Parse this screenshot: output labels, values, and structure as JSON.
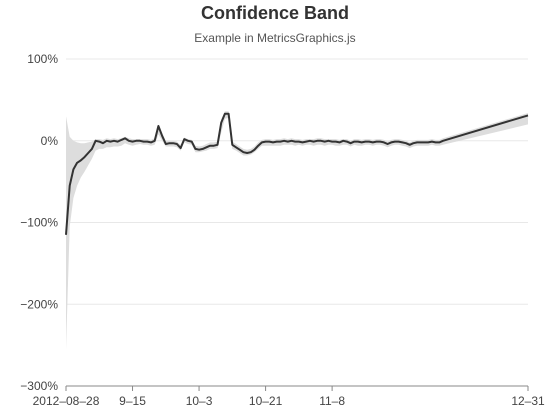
{
  "chart_data": {
    "type": "line",
    "title": "Confidence Band",
    "subtitle": "Example in MetricsGraphics.js",
    "y_format": "percent",
    "ylim": [
      -3.0,
      1.0
    ],
    "y_ticks": [
      1.0,
      0.0,
      -1.0,
      -2.0,
      -3.0
    ],
    "y_tick_labels": [
      "100%",
      "0%",
      "−100%",
      "−200%",
      "−300%"
    ],
    "xlim": [
      "2012-08-28",
      "2012-12-31"
    ],
    "x_ticks": [
      "2012-08-28",
      "2012-09-15",
      "2012-10-03",
      "2012-10-21",
      "2012-11-08",
      "2012-12-31"
    ],
    "x_tick_labels": [
      "2012–08–28",
      "9–15",
      "10–3",
      "10–21",
      "11–8",
      "12–31"
    ],
    "grid": true,
    "colors": {
      "line": "#333333",
      "band": "#dddddd",
      "grid": "#e8e8e8",
      "axis": "#888888"
    },
    "series": [
      {
        "values": [
          [
            "2012-08-28",
            -1.15,
            -2.55,
            0.3
          ],
          [
            "2012-08-29",
            -0.55,
            -1.05,
            0.05
          ],
          [
            "2012-08-30",
            -0.35,
            -0.7,
            0.0
          ],
          [
            "2012-08-31",
            -0.27,
            -0.55,
            -0.02
          ],
          [
            "2012-09-01",
            -0.24,
            -0.45,
            -0.03
          ],
          [
            "2012-09-02",
            -0.2,
            -0.38,
            -0.03
          ],
          [
            "2012-09-03",
            -0.15,
            -0.3,
            -0.02
          ],
          [
            "2012-09-04",
            -0.1,
            -0.22,
            -0.01
          ],
          [
            "2012-09-05",
            0.0,
            -0.12,
            0.02
          ],
          [
            "2012-09-06",
            -0.01,
            -0.1,
            0.02
          ],
          [
            "2012-09-07",
            -0.03,
            -0.1,
            0.01
          ],
          [
            "2012-09-08",
            0.0,
            -0.08,
            0.03
          ],
          [
            "2012-09-09",
            -0.01,
            -0.08,
            0.02
          ],
          [
            "2012-09-10",
            0.0,
            -0.07,
            0.03
          ],
          [
            "2012-09-11",
            -0.01,
            -0.07,
            0.02
          ],
          [
            "2012-09-12",
            0.01,
            -0.06,
            0.03
          ],
          [
            "2012-09-13",
            0.03,
            -0.03,
            0.05
          ],
          [
            "2012-09-14",
            0.0,
            -0.05,
            0.03
          ],
          [
            "2012-09-15",
            -0.01,
            -0.06,
            0.02
          ],
          [
            "2012-09-16",
            0.0,
            -0.05,
            0.02
          ],
          [
            "2012-09-17",
            0.0,
            -0.04,
            0.02
          ],
          [
            "2012-09-18",
            -0.01,
            -0.05,
            0.02
          ],
          [
            "2012-09-19",
            -0.01,
            -0.05,
            0.02
          ],
          [
            "2012-09-20",
            -0.02,
            -0.06,
            0.01
          ],
          [
            "2012-09-21",
            0.0,
            -0.05,
            0.03
          ],
          [
            "2012-09-22",
            0.18,
            0.08,
            0.2
          ],
          [
            "2012-09-23",
            0.06,
            0.0,
            0.1
          ],
          [
            "2012-09-24",
            -0.04,
            -0.07,
            0.0
          ],
          [
            "2012-09-25",
            -0.03,
            -0.07,
            0.0
          ],
          [
            "2012-09-26",
            -0.03,
            -0.07,
            0.0
          ],
          [
            "2012-09-27",
            -0.04,
            -0.08,
            -0.01
          ],
          [
            "2012-09-28",
            -0.09,
            -0.12,
            -0.05
          ],
          [
            "2012-09-29",
            0.02,
            -0.02,
            0.04
          ],
          [
            "2012-09-30",
            0.0,
            -0.04,
            0.02
          ],
          [
            "2012-10-01",
            -0.01,
            -0.05,
            0.01
          ],
          [
            "2012-10-02",
            -0.1,
            -0.14,
            -0.06
          ],
          [
            "2012-10-03",
            -0.11,
            -0.14,
            -0.07
          ],
          [
            "2012-10-04",
            -0.1,
            -0.13,
            -0.06
          ],
          [
            "2012-10-05",
            -0.08,
            -0.12,
            -0.04
          ],
          [
            "2012-10-06",
            -0.06,
            -0.1,
            -0.02
          ],
          [
            "2012-10-07",
            -0.06,
            -0.1,
            -0.02
          ],
          [
            "2012-10-08",
            -0.05,
            -0.09,
            -0.01
          ],
          [
            "2012-10-09",
            0.22,
            0.1,
            0.26
          ],
          [
            "2012-10-10",
            0.33,
            0.27,
            0.36
          ],
          [
            "2012-10-11",
            0.33,
            0.28,
            0.36
          ],
          [
            "2012-10-12",
            -0.05,
            -0.1,
            -0.01
          ],
          [
            "2012-10-13",
            -0.08,
            -0.12,
            -0.04
          ],
          [
            "2012-10-14",
            -0.11,
            -0.15,
            -0.07
          ],
          [
            "2012-10-15",
            -0.14,
            -0.18,
            -0.1
          ],
          [
            "2012-10-16",
            -0.15,
            -0.18,
            -0.11
          ],
          [
            "2012-10-17",
            -0.14,
            -0.17,
            -0.1
          ],
          [
            "2012-10-18",
            -0.11,
            -0.14,
            -0.07
          ],
          [
            "2012-10-19",
            -0.06,
            -0.1,
            -0.02
          ],
          [
            "2012-10-20",
            -0.02,
            -0.06,
            0.01
          ],
          [
            "2012-10-21",
            -0.01,
            -0.06,
            0.02
          ],
          [
            "2012-10-22",
            -0.01,
            -0.06,
            0.02
          ],
          [
            "2012-10-23",
            -0.02,
            -0.06,
            0.01
          ],
          [
            "2012-10-24",
            -0.01,
            -0.06,
            0.02
          ],
          [
            "2012-10-25",
            -0.01,
            -0.06,
            0.02
          ],
          [
            "2012-10-26",
            0.0,
            -0.05,
            0.03
          ],
          [
            "2012-10-27",
            -0.01,
            -0.05,
            0.02
          ],
          [
            "2012-10-28",
            0.0,
            -0.05,
            0.03
          ],
          [
            "2012-10-29",
            -0.01,
            -0.06,
            0.02
          ],
          [
            "2012-10-30",
            -0.01,
            -0.05,
            0.02
          ],
          [
            "2012-10-31",
            -0.02,
            -0.06,
            0.01
          ],
          [
            "2012-11-01",
            -0.01,
            -0.05,
            0.02
          ],
          [
            "2012-11-02",
            0.0,
            -0.05,
            0.02
          ],
          [
            "2012-11-03",
            -0.01,
            -0.06,
            0.02
          ],
          [
            "2012-11-04",
            0.0,
            -0.05,
            0.03
          ],
          [
            "2012-11-05",
            0.0,
            -0.05,
            0.03
          ],
          [
            "2012-11-06",
            -0.01,
            -0.06,
            0.02
          ],
          [
            "2012-11-07",
            0.0,
            -0.05,
            0.02
          ],
          [
            "2012-11-08",
            -0.01,
            -0.05,
            0.02
          ],
          [
            "2012-11-09",
            -0.01,
            -0.06,
            0.02
          ],
          [
            "2012-11-10",
            -0.02,
            -0.06,
            0.01
          ],
          [
            "2012-11-11",
            0.0,
            -0.05,
            0.02
          ],
          [
            "2012-11-12",
            -0.01,
            -0.05,
            0.02
          ],
          [
            "2012-11-13",
            -0.03,
            -0.07,
            0.0
          ],
          [
            "2012-11-14",
            -0.01,
            -0.05,
            0.02
          ],
          [
            "2012-11-15",
            -0.01,
            -0.06,
            0.02
          ],
          [
            "2012-11-16",
            -0.02,
            -0.06,
            0.01
          ],
          [
            "2012-11-17",
            -0.01,
            -0.05,
            0.02
          ],
          [
            "2012-11-18",
            -0.01,
            -0.05,
            0.02
          ],
          [
            "2012-11-19",
            -0.02,
            -0.06,
            0.01
          ],
          [
            "2012-11-20",
            -0.01,
            -0.05,
            0.02
          ],
          [
            "2012-11-21",
            -0.01,
            -0.05,
            0.02
          ],
          [
            "2012-11-22",
            -0.02,
            -0.06,
            0.01
          ],
          [
            "2012-11-23",
            -0.04,
            -0.08,
            -0.01
          ],
          [
            "2012-11-24",
            -0.02,
            -0.06,
            0.01
          ],
          [
            "2012-11-25",
            -0.01,
            -0.05,
            0.02
          ],
          [
            "2012-11-26",
            -0.01,
            -0.05,
            0.02
          ],
          [
            "2012-11-27",
            -0.02,
            -0.06,
            0.01
          ],
          [
            "2012-11-28",
            -0.03,
            -0.07,
            0.0
          ],
          [
            "2012-11-29",
            -0.05,
            -0.09,
            -0.02
          ],
          [
            "2012-11-30",
            -0.03,
            -0.07,
            0.0
          ],
          [
            "2012-12-01",
            -0.02,
            -0.06,
            0.01
          ],
          [
            "2012-12-02",
            -0.02,
            -0.06,
            0.01
          ],
          [
            "2012-12-03",
            -0.02,
            -0.06,
            0.01
          ],
          [
            "2012-12-04",
            -0.02,
            -0.06,
            0.01
          ],
          [
            "2012-12-05",
            -0.01,
            -0.05,
            0.02
          ],
          [
            "2012-12-06",
            -0.02,
            -0.06,
            0.01
          ],
          [
            "2012-12-07",
            -0.02,
            -0.06,
            0.01
          ],
          [
            "2012-12-08",
            0.0,
            -0.05,
            0.03
          ],
          [
            "2012-12-31",
            0.31,
            0.2,
            0.34
          ]
        ]
      }
    ]
  }
}
